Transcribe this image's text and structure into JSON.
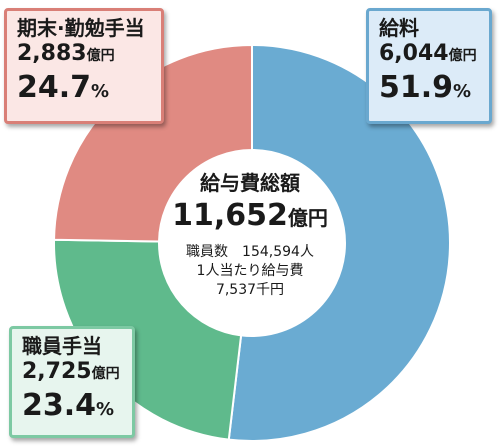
{
  "chart_data": {
    "type": "pie",
    "style": "donut",
    "unit": "億円",
    "slices": [
      {
        "label": "給料",
        "value": 6044,
        "percent": 51.9,
        "color": "#6aabd2"
      },
      {
        "label": "職員手当",
        "value": 2725,
        "percent": 23.4,
        "color": "#5fba8c"
      },
      {
        "label": "期末·勤勉手当",
        "value": 2883,
        "percent": 24.7,
        "color": "#e08a82"
      }
    ],
    "center": {
      "title": "給与費総額",
      "total": "11,652",
      "total_unit": "億円",
      "staff_count": "職員数　154,594人",
      "per_person_label": "1人当たり給与費",
      "per_person_value": "7,537千円"
    }
  },
  "labels": [
    {
      "name": "給料",
      "amount": "6,044",
      "amount_unit": "億円",
      "percent": "51.9",
      "percent_unit": "%"
    },
    {
      "name": "職員手当",
      "amount": "2,725",
      "amount_unit": "億円",
      "percent": "23.4",
      "percent_unit": "%"
    },
    {
      "name": "期末·勤勉手当",
      "amount": "2,883",
      "amount_unit": "億円",
      "percent": "24.7",
      "percent_unit": "%"
    }
  ]
}
